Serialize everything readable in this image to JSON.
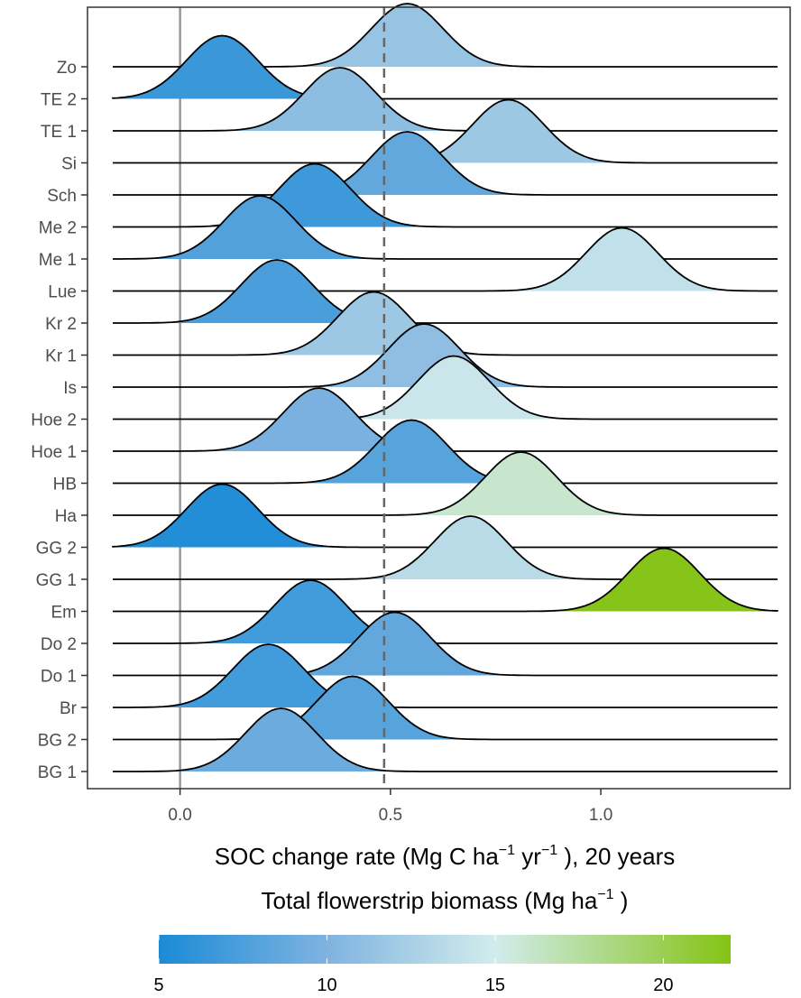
{
  "chart_data": {
    "type": "ridgeline",
    "x_axis": {
      "range": [
        -0.22,
        1.45
      ],
      "ticks": [
        0.0,
        0.5,
        1.0
      ],
      "tick_labels": [
        "0.0",
        "0.5",
        "1.0"
      ],
      "title_main": "SOC change rate (Mg C ha",
      "title_sup1": "−1",
      "title_mid": " yr",
      "title_sup2": "−1",
      "title_end": " ), 20 years"
    },
    "reference_lines": [
      {
        "x": 0.0,
        "style": "solid",
        "color": "#999999"
      },
      {
        "x": 0.485,
        "style": "dashed",
        "color": "#666666"
      }
    ],
    "line_range": [
      -0.16,
      1.42
    ],
    "sd": 0.085,
    "sites": [
      {
        "label": "BG 1",
        "mean": 0.24,
        "biomass": 9.0
      },
      {
        "label": "BG 2",
        "mean": 0.41,
        "biomass": 8.0
      },
      {
        "label": "Br",
        "mean": 0.21,
        "biomass": 7.0
      },
      {
        "label": "Do 1",
        "mean": 0.51,
        "biomass": 8.6
      },
      {
        "label": "Do 2",
        "mean": 0.31,
        "biomass": 7.0
      },
      {
        "label": "Em",
        "mean": 1.15,
        "biomass": 21.8
      },
      {
        "label": "GG 1",
        "mean": 0.69,
        "biomass": 13.5
      },
      {
        "label": "GG 2",
        "mean": 0.1,
        "biomass": 5.4
      },
      {
        "label": "Ha",
        "mean": 0.81,
        "biomass": 16.0
      },
      {
        "label": "HB",
        "mean": 0.55,
        "biomass": 8.0
      },
      {
        "label": "Hoe 1",
        "mean": 0.33,
        "biomass": 9.8
      },
      {
        "label": "Hoe 2",
        "mean": 0.65,
        "biomass": 14.5
      },
      {
        "label": "Is",
        "mean": 0.58,
        "biomass": 11.0
      },
      {
        "label": "Kr 1",
        "mean": 0.46,
        "biomass": 11.8
      },
      {
        "label": "Kr 2",
        "mean": 0.23,
        "biomass": 7.4
      },
      {
        "label": "Lue",
        "mean": 1.05,
        "biomass": 14.0
      },
      {
        "label": "Me 1",
        "mean": 0.19,
        "biomass": 7.8
      },
      {
        "label": "Me 2",
        "mean": 0.32,
        "biomass": 6.8
      },
      {
        "label": "Sch",
        "mean": 0.54,
        "biomass": 8.6
      },
      {
        "label": "Si",
        "mean": 0.78,
        "biomass": 11.8
      },
      {
        "label": "TE 1",
        "mean": 0.38,
        "biomass": 10.9
      },
      {
        "label": "TE 2",
        "mean": 0.1,
        "biomass": 6.6
      },
      {
        "label": "Zo",
        "mean": 0.54,
        "biomass": 11.5
      }
    ],
    "colorbar": {
      "title_main": "Total flowerstrip biomass (Mg ha",
      "title_sup": "−1",
      "title_end": " )",
      "range": [
        5,
        22
      ],
      "ticks": [
        5,
        10,
        15,
        20
      ],
      "tick_labels": [
        "5",
        "10",
        "15",
        "20"
      ],
      "color_stops": [
        {
          "value": 5,
          "color": "#1a8bd6"
        },
        {
          "value": 10,
          "color": "#7fb3e0"
        },
        {
          "value": 15,
          "color": "#d2ecec"
        },
        {
          "value": 22,
          "color": "#84c314"
        }
      ]
    }
  }
}
